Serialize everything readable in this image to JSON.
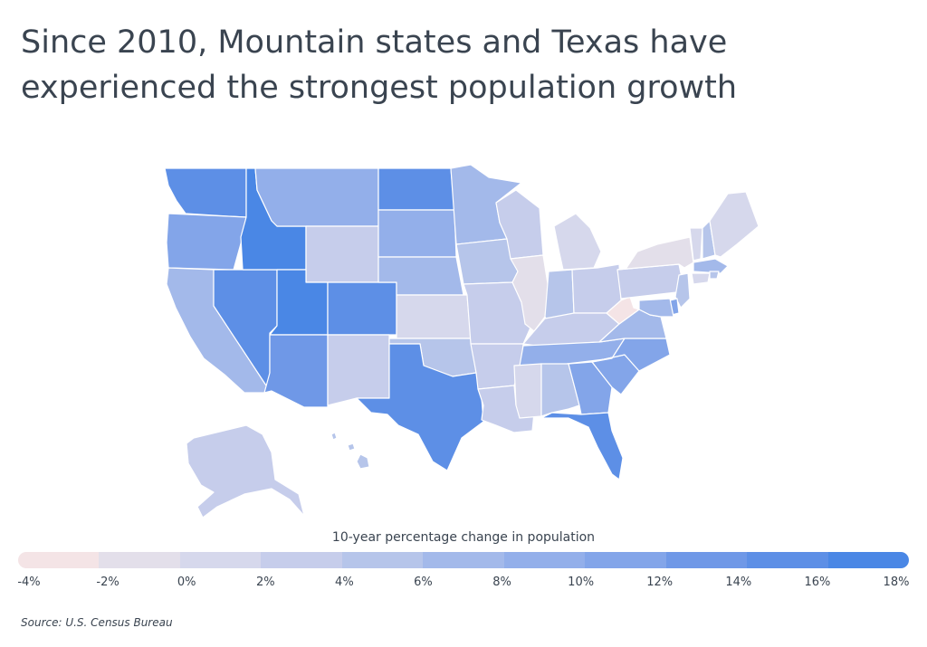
{
  "title_line1": "Since 2010, Mountain states and Texas have",
  "title_line2": "experienced the strongest population growth",
  "legend": {
    "title": "10-year percentage change in population",
    "ticks": [
      "-4%",
      "-2%",
      "0%",
      "2%",
      "4%",
      "6%",
      "8%",
      "10%",
      "12%",
      "14%",
      "16%",
      "18%"
    ],
    "colors": [
      "#f4e4e6",
      "#e3dfea",
      "#d6d8ec",
      "#c6cdeb",
      "#b6c5ea",
      "#a3b9ea",
      "#93afea",
      "#83a5e9",
      "#6f98e7",
      "#5d8fe6",
      "#4a87e5"
    ]
  },
  "source": "Source:  U.S. Census Bureau",
  "chart_data": {
    "type": "choropleth",
    "title": "Since 2010, Mountain states and Texas have experienced the strongest population growth",
    "legend_label": "10-year percentage change in population",
    "scale_range": [
      -4,
      18
    ],
    "unit": "%",
    "states": {
      "WA": 14.6,
      "OR": 10.6,
      "CA": 6.1,
      "NV": 15.0,
      "ID": 17.3,
      "MT": 9.7,
      "WY": 2.3,
      "UT": 18.4,
      "CO": 14.8,
      "AZ": 13.9,
      "NM": 2.8,
      "ND": 15.8,
      "SD": 8.9,
      "NE": 7.4,
      "KS": 1.5,
      "OK": 5.5,
      "TX": 15.9,
      "MN": 7.6,
      "IA": 4.7,
      "MO": 2.8,
      "AR": 3.3,
      "LA": 3.6,
      "WI": 3.6,
      "IL": -0.4,
      "MI": 1.9,
      "IN": 4.7,
      "OH": 2.3,
      "KY": 3.8,
      "TN": 8.9,
      "MS": 0.2,
      "AL": 4.0,
      "GA": 10.6,
      "FL": 14.2,
      "SC": 11.3,
      "NC": 10.0,
      "VA": 7.9,
      "WV": -3.2,
      "PA": 2.4,
      "NY": -0.1,
      "VT": 0.3,
      "NH": 4.6,
      "ME": 1.7,
      "MA": 7.4,
      "RI": 4.3,
      "CT": 1.0,
      "NJ": 5.7,
      "DE": 10.2,
      "MD": 7.0,
      "AK": 3.3,
      "HI": 5.3
    }
  }
}
